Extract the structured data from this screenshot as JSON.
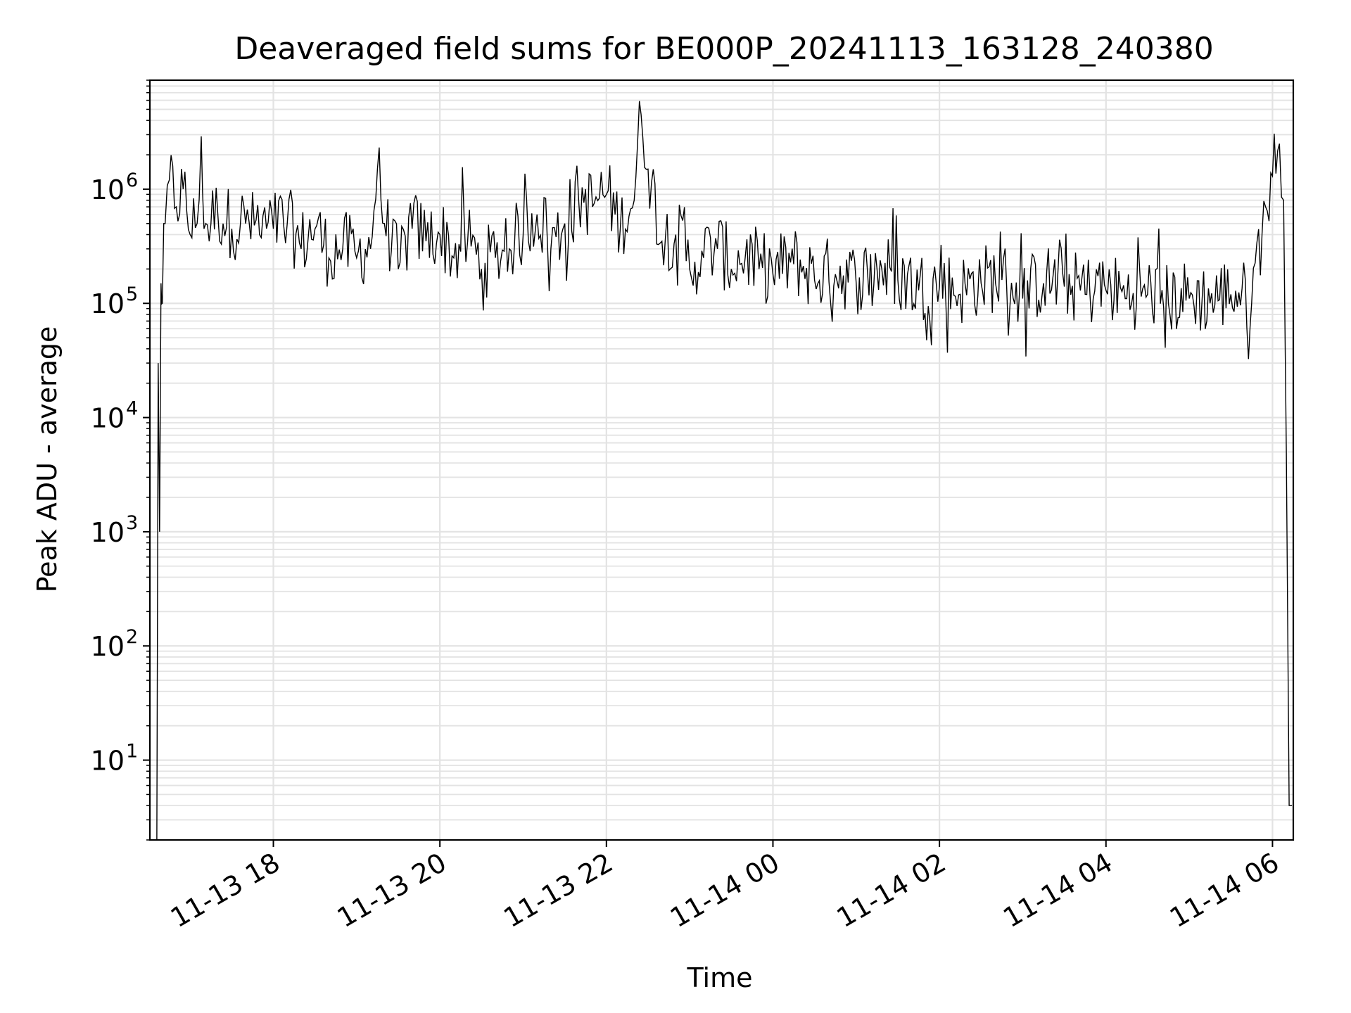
{
  "chart_data": {
    "type": "line",
    "title": "Deaveraged field sums for BE000P_20241113_163128_240380",
    "xlabel": "Time",
    "ylabel": "Peak ADU - average",
    "yscale": "log",
    "x_axis_type": "datetime",
    "xlim": [
      "2024-11-13 16:31",
      "2024-11-14 06:15"
    ],
    "ylim": [
      2,
      9000000
    ],
    "grid": true,
    "x_ticks": [
      {
        "label": "11-13 18",
        "value": "2024-11-13 18:00"
      },
      {
        "label": "11-13 20",
        "value": "2024-11-13 20:00"
      },
      {
        "label": "11-13 22",
        "value": "2024-11-13 22:00"
      },
      {
        "label": "11-14 00",
        "value": "2024-11-14 00:00"
      },
      {
        "label": "11-14 02",
        "value": "2024-11-14 02:00"
      },
      {
        "label": "11-14 04",
        "value": "2024-11-14 04:00"
      },
      {
        "label": "11-14 06",
        "value": "2024-11-14 06:00"
      }
    ],
    "y_ticks": [
      {
        "base": "10",
        "exp": "1",
        "value": 10
      },
      {
        "base": "10",
        "exp": "2",
        "value": 100
      },
      {
        "base": "10",
        "exp": "3",
        "value": 1000
      },
      {
        "base": "10",
        "exp": "4",
        "value": 10000
      },
      {
        "base": "10",
        "exp": "5",
        "value": 100000
      },
      {
        "base": "10",
        "exp": "6",
        "value": 1000000
      }
    ],
    "line_color": "#000000",
    "series": [
      {
        "x": [
          "2024-11-13 16:36",
          "2024-11-13 16:37",
          "2024-11-13 16:38",
          "2024-11-13 16:39",
          "2024-11-13 16:40",
          "2024-11-13 16:42",
          "2024-11-13 16:45",
          "2024-11-13 16:50",
          "2024-11-13 16:55",
          "2024-11-13 17:00",
          "2024-11-13 17:05",
          "2024-11-13 17:08",
          "2024-11-13 17:10",
          "2024-11-13 17:15",
          "2024-11-13 17:20",
          "2024-11-13 17:30",
          "2024-11-13 17:40",
          "2024-11-13 17:50",
          "2024-11-13 18:00",
          "2024-11-13 18:10",
          "2024-11-13 18:20",
          "2024-11-13 18:30",
          "2024-11-13 18:40",
          "2024-11-13 18:50",
          "2024-11-13 19:00",
          "2024-11-13 19:10",
          "2024-11-13 19:15",
          "2024-11-13 19:20",
          "2024-11-13 19:30",
          "2024-11-13 19:40",
          "2024-11-13 19:50",
          "2024-11-13 20:00",
          "2024-11-13 20:10",
          "2024-11-13 20:20",
          "2024-11-13 20:30",
          "2024-11-13 20:40",
          "2024-11-13 20:50",
          "2024-11-13 21:00",
          "2024-11-13 21:10",
          "2024-11-13 21:20",
          "2024-11-13 21:30",
          "2024-11-13 21:40",
          "2024-11-13 21:50",
          "2024-11-13 22:00",
          "2024-11-13 22:10",
          "2024-11-13 22:20",
          "2024-11-13 22:25",
          "2024-11-13 22:30",
          "2024-11-13 22:40",
          "2024-11-13 22:50",
          "2024-11-13 23:00",
          "2024-11-13 23:10",
          "2024-11-13 23:20",
          "2024-11-13 23:30",
          "2024-11-13 23:40",
          "2024-11-13 23:50",
          "2024-11-14 00:00",
          "2024-11-14 00:15",
          "2024-11-14 00:30",
          "2024-11-14 00:45",
          "2024-11-14 01:00",
          "2024-11-14 01:15",
          "2024-11-14 01:30",
          "2024-11-14 01:45",
          "2024-11-14 02:00",
          "2024-11-14 02:15",
          "2024-11-14 02:30",
          "2024-11-14 02:45",
          "2024-11-14 03:00",
          "2024-11-14 03:15",
          "2024-11-14 03:30",
          "2024-11-14 03:45",
          "2024-11-14 04:00",
          "2024-11-14 04:15",
          "2024-11-14 04:30",
          "2024-11-14 04:45",
          "2024-11-14 05:00",
          "2024-11-14 05:15",
          "2024-11-14 05:30",
          "2024-11-14 05:45",
          "2024-11-14 05:55",
          "2024-11-14 06:00",
          "2024-11-14 06:05",
          "2024-11-14 06:08",
          "2024-11-14 06:10",
          "2024-11-14 06:12",
          "2024-11-14 06:14"
        ],
        "y": [
          2,
          30000,
          1000,
          150000,
          100000,
          500000,
          1200000,
          700000,
          1000000,
          400000,
          500000,
          2900000,
          450000,
          500000,
          600000,
          450000,
          500000,
          400000,
          450000,
          500000,
          300000,
          450000,
          250000,
          300000,
          250000,
          300000,
          1500000,
          500000,
          200000,
          450000,
          350000,
          400000,
          250000,
          350000,
          200000,
          250000,
          300000,
          400000,
          600000,
          300000,
          500000,
          800000,
          700000,
          900000,
          450000,
          800000,
          4500000,
          1500000,
          350000,
          400000,
          200000,
          250000,
          300000,
          200000,
          250000,
          200000,
          180000,
          220000,
          160000,
          180000,
          150000,
          200000,
          160000,
          130000,
          140000,
          120000,
          150000,
          160000,
          110000,
          150000,
          140000,
          120000,
          130000,
          110000,
          120000,
          100000,
          110000,
          100000,
          120000,
          100000,
          700000,
          1300000,
          2500000,
          800000,
          5000,
          4,
          4
        ]
      }
    ]
  }
}
